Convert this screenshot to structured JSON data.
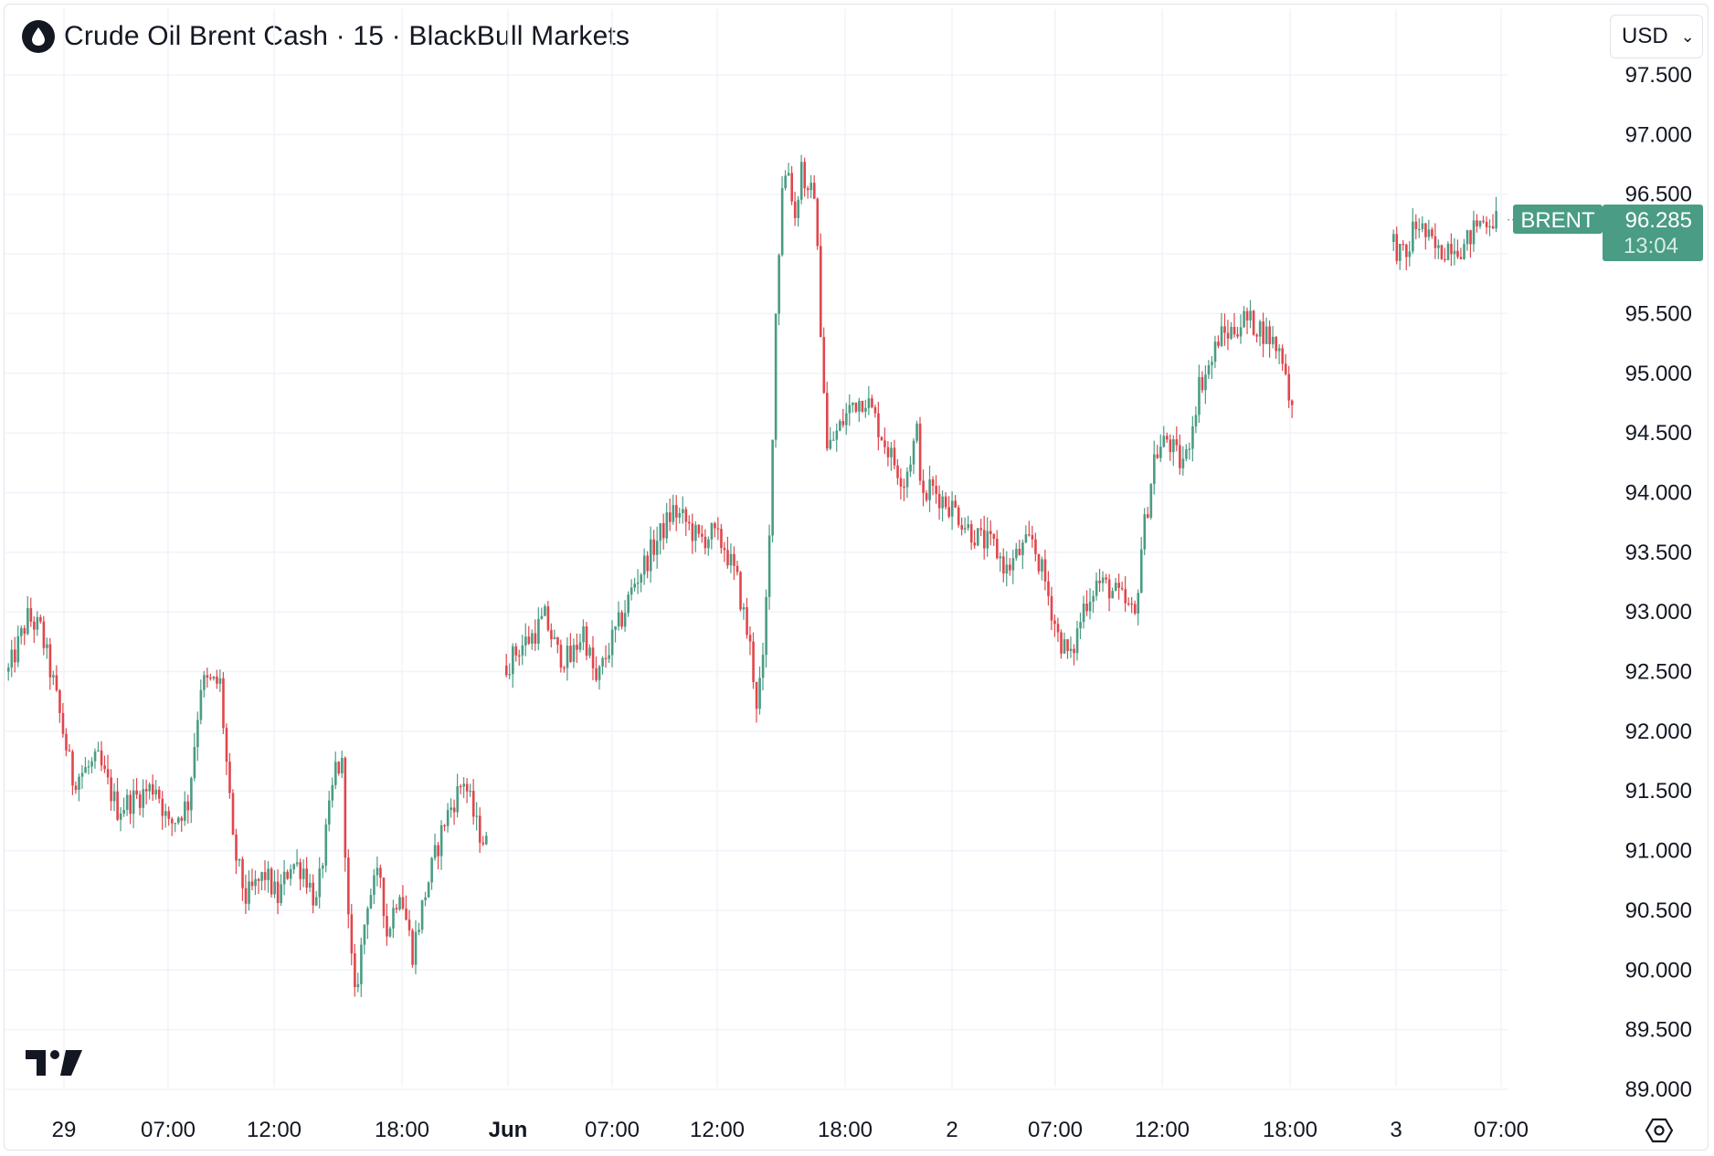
{
  "header": {
    "title": "Crude Oil Brent Cash · 15 · BlackBull Markets",
    "logo_icon": "oil-drop-icon"
  },
  "currency": {
    "selected": "USD",
    "icon": "chevron-down-icon"
  },
  "price_label": {
    "symbol": "BRENT",
    "price": "96.285",
    "countdown": "13:04",
    "color": "#4a9c84"
  },
  "colors": {
    "up": "#4a9c84",
    "down": "#e0464c",
    "grid": "#f0f3fa",
    "text": "#131722"
  },
  "footer": {
    "settings_icon": "settings-icon",
    "brand_icon": "tradingview-logo-icon"
  },
  "chart_data": {
    "type": "candlestick",
    "title": "Crude Oil Brent Cash · 15 · BlackBull Markets",
    "interval": "15",
    "ylim": [
      88.8,
      97.7
    ],
    "y_ticks": [
      "97.500",
      "97.000",
      "96.500",
      "96.000",
      "95.500",
      "95.000",
      "94.500",
      "94.000",
      "93.500",
      "93.000",
      "92.500",
      "92.000",
      "91.500",
      "91.000",
      "90.500",
      "90.000",
      "89.500",
      "89.000"
    ],
    "x_ticks": [
      {
        "label": "29",
        "bold": false
      },
      {
        "label": "07:00",
        "bold": false
      },
      {
        "label": "12:00",
        "bold": false
      },
      {
        "label": "18:00",
        "bold": false
      },
      {
        "label": "Jun",
        "bold": true
      },
      {
        "label": "07:00",
        "bold": false
      },
      {
        "label": "12:00",
        "bold": false
      },
      {
        "label": "18:00",
        "bold": false
      },
      {
        "label": "2",
        "bold": false
      },
      {
        "label": "07:00",
        "bold": false
      },
      {
        "label": "12:00",
        "bold": false
      },
      {
        "label": "18:00",
        "bold": false
      },
      {
        "label": "3",
        "bold": false
      },
      {
        "label": "07:00",
        "bold": false
      }
    ],
    "grid": true,
    "sessions": [
      {
        "label": "May 29",
        "anchors": [
          [
            0,
            92.5
          ],
          [
            6,
            92.95
          ],
          [
            10,
            92.85
          ],
          [
            14,
            92.4
          ],
          [
            20,
            91.6
          ],
          [
            28,
            91.75
          ],
          [
            34,
            91.35
          ],
          [
            40,
            91.45
          ],
          [
            46,
            91.55
          ],
          [
            50,
            91.2
          ],
          [
            56,
            91.4
          ],
          [
            60,
            92.4
          ],
          [
            66,
            92.4
          ],
          [
            70,
            91.05
          ],
          [
            74,
            90.6
          ],
          [
            80,
            90.8
          ],
          [
            84,
            90.6
          ],
          [
            88,
            90.9
          ],
          [
            92,
            90.85
          ],
          [
            96,
            90.55
          ],
          [
            102,
            91.7
          ],
          [
            104,
            91.7
          ],
          [
            106,
            90.4
          ],
          [
            108,
            89.75
          ],
          [
            112,
            90.6
          ],
          [
            116,
            90.8
          ],
          [
            118,
            90.3
          ],
          [
            122,
            90.7
          ],
          [
            126,
            90.15
          ],
          [
            130,
            90.65
          ],
          [
            136,
            91.25
          ],
          [
            142,
            91.6
          ],
          [
            146,
            91.2
          ],
          [
            149,
            91.05
          ]
        ]
      },
      {
        "label": "Jun 1",
        "anchors": [
          [
            0,
            92.55
          ],
          [
            4,
            92.7
          ],
          [
            8,
            92.8
          ],
          [
            12,
            92.95
          ],
          [
            16,
            92.65
          ],
          [
            20,
            92.6
          ],
          [
            24,
            92.85
          ],
          [
            28,
            92.4
          ],
          [
            32,
            92.7
          ],
          [
            36,
            92.95
          ],
          [
            40,
            93.25
          ],
          [
            46,
            93.55
          ],
          [
            52,
            93.85
          ],
          [
            56,
            93.75
          ],
          [
            60,
            93.6
          ],
          [
            64,
            93.65
          ],
          [
            68,
            93.55
          ],
          [
            72,
            93.25
          ],
          [
            76,
            92.7
          ],
          [
            78,
            92.25
          ],
          [
            80,
            92.55
          ],
          [
            82,
            93.6
          ],
          [
            84,
            95.5
          ],
          [
            86,
            96.6
          ],
          [
            88,
            96.7
          ],
          [
            90,
            96.3
          ],
          [
            92,
            96.75
          ],
          [
            94,
            96.45
          ],
          [
            96,
            96.55
          ],
          [
            98,
            95.4
          ],
          [
            100,
            94.35
          ],
          [
            104,
            94.55
          ],
          [
            108,
            94.75
          ],
          [
            112,
            94.8
          ],
          [
            116,
            94.55
          ],
          [
            120,
            94.3
          ],
          [
            124,
            94.1
          ],
          [
            128,
            94.5
          ],
          [
            130,
            93.9
          ],
          [
            132,
            94.05
          ],
          [
            136,
            93.95
          ],
          [
            140,
            93.85
          ],
          [
            144,
            93.7
          ],
          [
            148,
            93.6
          ],
          [
            152,
            93.55
          ],
          [
            156,
            93.35
          ],
          [
            160,
            93.5
          ],
          [
            164,
            93.6
          ],
          [
            168,
            93.25
          ],
          [
            172,
            92.8
          ],
          [
            176,
            92.6
          ],
          [
            180,
            93.05
          ],
          [
            184,
            93.25
          ],
          [
            188,
            93.2
          ],
          [
            192,
            93.1
          ],
          [
            196,
            92.95
          ],
          [
            198,
            93.55
          ],
          [
            200,
            93.9
          ],
          [
            202,
            94.3
          ],
          [
            206,
            94.45
          ],
          [
            210,
            94.25
          ],
          [
            212,
            94.3
          ],
          [
            214,
            94.6
          ],
          [
            216,
            94.9
          ],
          [
            220,
            95.1
          ],
          [
            222,
            95.3
          ],
          [
            226,
            95.35
          ],
          [
            230,
            95.45
          ],
          [
            234,
            95.4
          ],
          [
            238,
            95.3
          ],
          [
            242,
            95.15
          ],
          [
            245,
            94.7
          ]
        ]
      },
      {
        "label": "Jun 3",
        "anchors": [
          [
            0,
            96.1
          ],
          [
            2,
            96.0
          ],
          [
            4,
            95.95
          ],
          [
            6,
            96.2
          ],
          [
            8,
            96.25
          ],
          [
            10,
            96.15
          ],
          [
            14,
            96.0
          ],
          [
            18,
            96.1
          ],
          [
            22,
            96.05
          ],
          [
            26,
            96.25
          ],
          [
            30,
            96.3
          ],
          [
            32,
            96.285
          ]
        ]
      }
    ]
  }
}
